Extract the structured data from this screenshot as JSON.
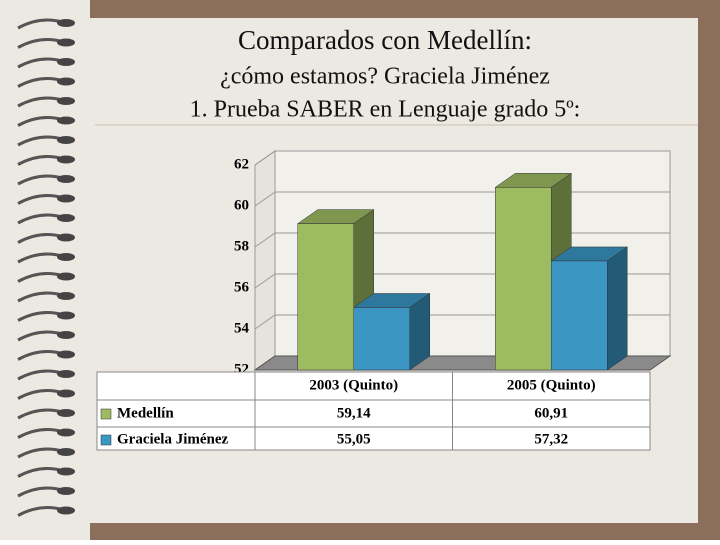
{
  "chart_data": {
    "type": "bar3d",
    "title": [
      "Comparados con Medellín:",
      "¿cómo estamos? Graciela Jiménez",
      "1. Prueba SABER en Lenguaje grado 5º:"
    ],
    "categories": [
      "2003 (Quinto)",
      "2005 (Quinto)"
    ],
    "series": [
      {
        "name": "Medellín",
        "color": "#9dbb61",
        "values": [
          59.14,
          60.91
        ],
        "value_labels": [
          "59,14",
          "60,91"
        ]
      },
      {
        "name": "Graciela Jiménez",
        "color": "#3b96c4",
        "values": [
          55.05,
          57.32
        ],
        "value_labels": [
          "55,05",
          "57,32"
        ]
      }
    ],
    "ylim": [
      52,
      62
    ],
    "yticks": [
      52,
      54,
      56,
      58,
      60,
      62
    ],
    "grid": true
  }
}
